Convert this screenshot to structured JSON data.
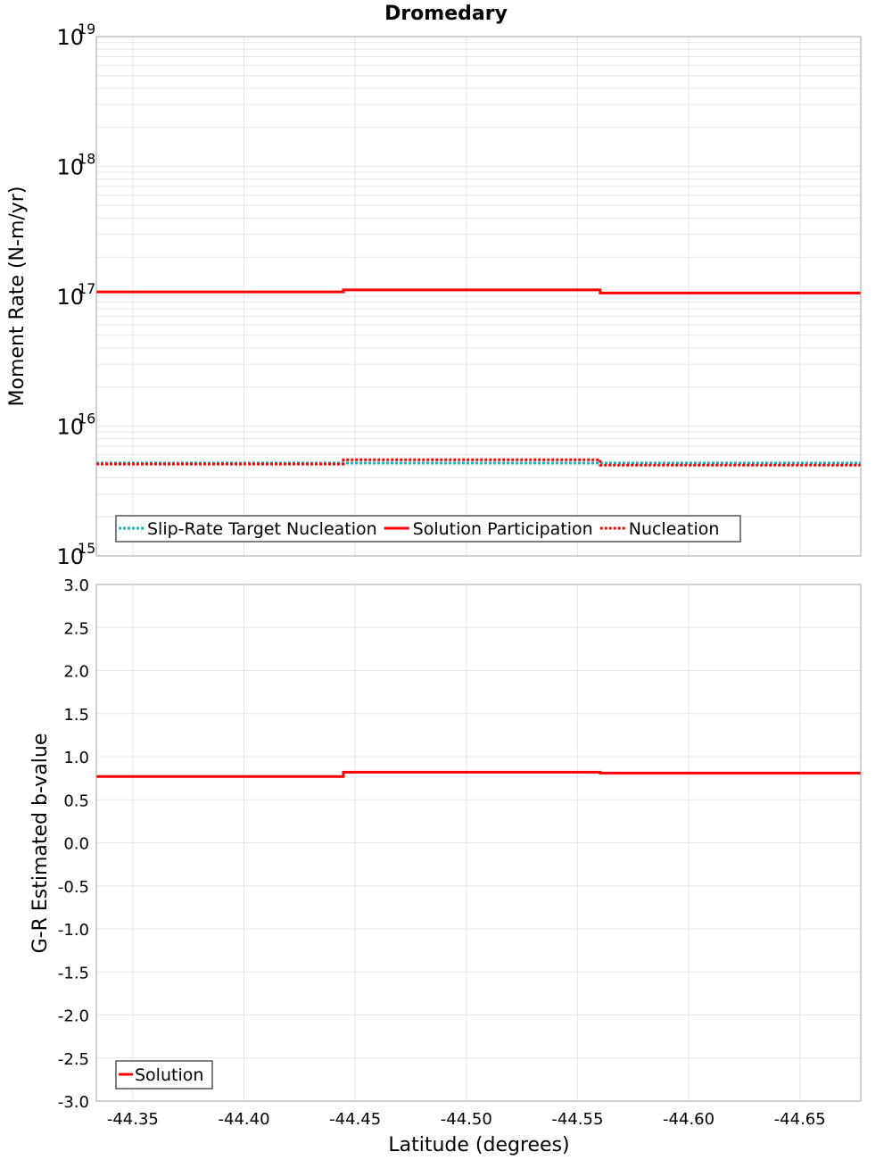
{
  "title": "Dromedary",
  "x_axis": {
    "label": "Latitude (degrees)",
    "range": [
      -44.3336,
      -44.6774
    ],
    "ticks": [
      -44.35,
      -44.4,
      -44.45,
      -44.5,
      -44.55,
      -44.6,
      -44.65
    ],
    "tick_labels": [
      "-44.35",
      "-44.40",
      "-44.45",
      "-44.50",
      "-44.55",
      "-44.60",
      "-44.65"
    ]
  },
  "colors": {
    "solution": "#ff0000",
    "nucleation": "#ff0000",
    "slip_rate_target": "#19b5c2",
    "grid": "#e6e6e6",
    "frame": "#a0a0a0",
    "legend_border": "#555555"
  },
  "chart_data": [
    {
      "type": "line",
      "panel": "top",
      "title": "Dromedary",
      "xlabel": "Latitude (degrees)",
      "ylabel": "Moment Rate (N-m/yr)",
      "yscale": "log",
      "ylim": [
        1000000000000000.0,
        1e+19
      ],
      "y_tick_labels": [
        {
          "base": "10",
          "exp": "19"
        },
        {
          "base": "10",
          "exp": "18"
        },
        {
          "base": "10",
          "exp": "17"
        },
        {
          "base": "10",
          "exp": "16"
        },
        {
          "base": "10",
          "exp": "15"
        }
      ],
      "grid": true,
      "legend_position": "lower-left",
      "x_breaks": [
        -44.3336,
        -44.4447,
        -44.5602,
        -44.6774
      ],
      "series": [
        {
          "name": "Slip-Rate Target Nucleation",
          "style": "dotted",
          "color": "#19b5c2",
          "values": [
            5200000000000000.0,
            5200000000000000.0,
            5200000000000000.0
          ]
        },
        {
          "name": "Solution Participation",
          "style": "solid",
          "color": "#ff0000",
          "values": [
            1.08e+17,
            1.12e+17,
            1.06e+17
          ]
        },
        {
          "name": "Nucleation",
          "style": "dotted",
          "color": "#ff0000",
          "values": [
            5100000000000000.0,
            5500000000000000.0,
            5000000000000000.0
          ]
        }
      ]
    },
    {
      "type": "line",
      "panel": "bottom",
      "xlabel": "Latitude (degrees)",
      "ylabel": "G-R Estimated b-value",
      "yscale": "linear",
      "ylim": [
        -3.0,
        3.0
      ],
      "y_ticks": [
        3.0,
        2.5,
        2.0,
        1.5,
        1.0,
        0.5,
        0.0,
        -0.5,
        -1.0,
        -1.5,
        -2.0,
        -2.5,
        -3.0
      ],
      "y_tick_labels": [
        "3.0",
        "2.5",
        "2.0",
        "1.5",
        "1.0",
        "0.5",
        "0.0",
        "-0.5",
        "-1.0",
        "-1.5",
        "-2.0",
        "-2.5",
        "-3.0"
      ],
      "grid": true,
      "legend_position": "lower-left",
      "x_breaks": [
        -44.3336,
        -44.4447,
        -44.5602,
        -44.6774
      ],
      "series": [
        {
          "name": "Solution",
          "style": "solid",
          "color": "#ff0000",
          "values": [
            0.77,
            0.82,
            0.81
          ]
        }
      ]
    }
  ]
}
